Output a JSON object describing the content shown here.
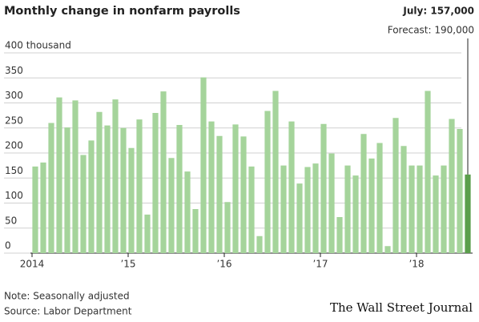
{
  "chart_data": {
    "type": "bar",
    "title": "Monthly change in nonfarm payrolls",
    "categories": [
      "2014",
      null,
      null,
      null,
      null,
      null,
      null,
      null,
      null,
      null,
      null,
      null,
      "’15",
      null,
      null,
      null,
      null,
      null,
      null,
      null,
      null,
      null,
      null,
      null,
      "’16",
      null,
      null,
      null,
      null,
      null,
      null,
      null,
      null,
      null,
      null,
      null,
      "’17",
      null,
      null,
      null,
      null,
      null,
      null,
      null,
      null,
      null,
      null,
      null,
      "’18",
      null,
      null,
      null,
      null,
      null,
      null
    ],
    "values": [
      173,
      181,
      260,
      311,
      251,
      305,
      196,
      225,
      282,
      255,
      307,
      250,
      210,
      267,
      77,
      280,
      323,
      190,
      256,
      163,
      88,
      351,
      263,
      234,
      102,
      257,
      233,
      173,
      34,
      284,
      324,
      175,
      263,
      139,
      172,
      179,
      258,
      199,
      72,
      175,
      155,
      238,
      189,
      220,
      14,
      270,
      214,
      175,
      175,
      324,
      155,
      175,
      268,
      248,
      157
    ],
    "colors": [
      "#a5d49b",
      "#a5d49b",
      "#a5d49b",
      "#a5d49b",
      "#a5d49b",
      "#a5d49b",
      "#a5d49b",
      "#a5d49b",
      "#a5d49b",
      "#a5d49b",
      "#a5d49b",
      "#a5d49b",
      "#a5d49b",
      "#a5d49b",
      "#a5d49b",
      "#a5d49b",
      "#a5d49b",
      "#a5d49b",
      "#a5d49b",
      "#a5d49b",
      "#a5d49b",
      "#a5d49b",
      "#a5d49b",
      "#a5d49b",
      "#a5d49b",
      "#a5d49b",
      "#a5d49b",
      "#a5d49b",
      "#a5d49b",
      "#a5d49b",
      "#a5d49b",
      "#a5d49b",
      "#a5d49b",
      "#a5d49b",
      "#a5d49b",
      "#a5d49b",
      "#a5d49b",
      "#a5d49b",
      "#a5d49b",
      "#a5d49b",
      "#a5d49b",
      "#a5d49b",
      "#a5d49b",
      "#a5d49b",
      "#a5d49b",
      "#a5d49b",
      "#a5d49b",
      "#a5d49b",
      "#a5d49b",
      "#a5d49b",
      "#a5d49b",
      "#a5d49b",
      "#a5d49b",
      "#a5d49b",
      "#5b9e4c"
    ],
    "ylim": [
      0,
      400
    ],
    "yticks": [
      0,
      50,
      100,
      150,
      200,
      250,
      300,
      350,
      {
        "value": 400,
        "label": "400 thousand"
      }
    ],
    "grid": true,
    "annotations": [
      "July: 157,000",
      "Forecast: 190,000"
    ],
    "note": "Note: Seasonally adjusted",
    "source": "Source: Labor Department",
    "credit": "The Wall Street Journal"
  }
}
